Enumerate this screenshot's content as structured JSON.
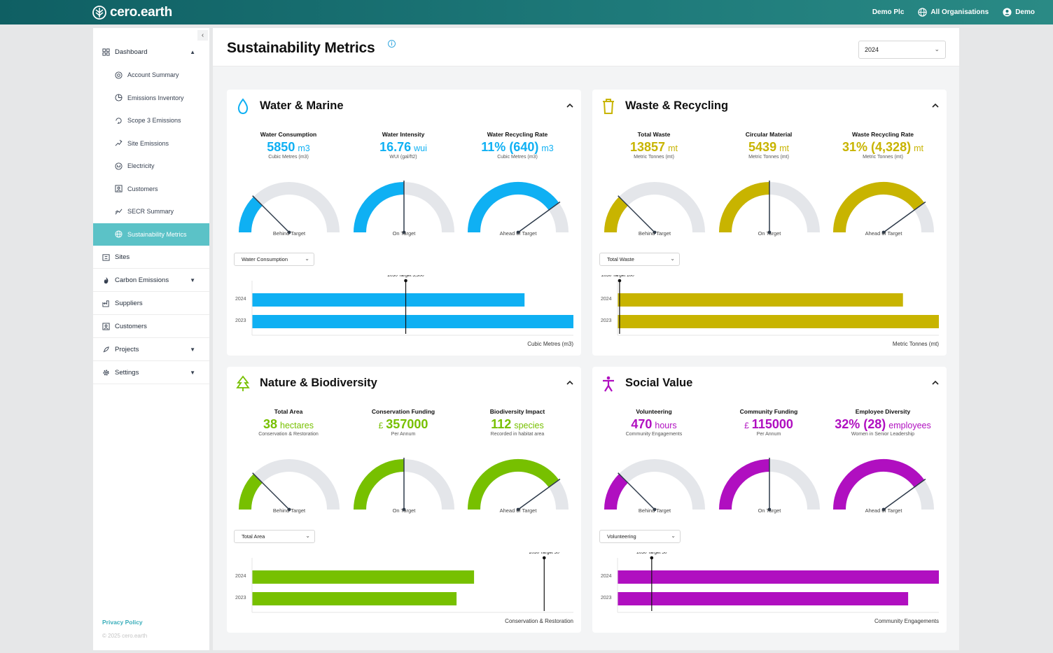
{
  "app": {
    "brand": "cero.earth",
    "org": "Demo Plc",
    "all_orgs": "All Organisations",
    "user": "Demo"
  },
  "sidebar": {
    "items": [
      {
        "label": "Dashboard",
        "icon": "dashboard-icon",
        "caret": "up"
      },
      {
        "label": "Account Summary",
        "icon": "dial-icon"
      },
      {
        "label": "Emissions Inventory",
        "icon": "pie-icon"
      },
      {
        "label": "Scope 3 Emissions",
        "icon": "cycle-icon"
      },
      {
        "label": "Site Emissions",
        "icon": "sparkle-icon"
      },
      {
        "label": "Electricity",
        "icon": "plug-icon"
      },
      {
        "label": "Customers",
        "icon": "person-card-icon"
      },
      {
        "label": "SECR Summary",
        "icon": "trend-icon"
      },
      {
        "label": "Sustainability Metrics",
        "icon": "globe-icon",
        "active": true
      },
      {
        "label": "Sites",
        "icon": "building-icon"
      },
      {
        "label": "Carbon Emissions",
        "icon": "flame-icon",
        "caret": "down"
      },
      {
        "label": "Suppliers",
        "icon": "factory-icon"
      },
      {
        "label": "Customers",
        "icon": "person-card-icon"
      },
      {
        "label": "Projects",
        "icon": "rocket-icon",
        "caret": "down"
      },
      {
        "label": "Settings",
        "icon": "gear-icon",
        "caret": "down"
      }
    ],
    "privacy": "Privacy Policy",
    "copyright": "© 2025 cero.earth"
  },
  "page": {
    "title": "Sustainability Metrics",
    "year": "2024"
  },
  "cards": [
    {
      "title": "Water & Marine",
      "icon": "water-drop-icon",
      "color": "#0fb0f3",
      "metrics": [
        {
          "label": "Water Consumption",
          "value": "5850",
          "unit": "m3",
          "sub": "Cubic Metres (m3)"
        },
        {
          "label": "Water Intensity",
          "value": "16.76",
          "unit": "wui",
          "sub": "WUI (gal/ft2)"
        },
        {
          "label": "Water Recycling Rate",
          "value": "11% (640)",
          "unit": "m3",
          "sub": "Cubic Metres (m3)"
        }
      ],
      "gauges": [
        {
          "label": "Behind Target",
          "fraction": 0.25
        },
        {
          "label": "On Target",
          "fraction": 0.5
        },
        {
          "label": "Ahead of Target",
          "fraction": 0.8
        }
      ],
      "select": "Water Consumption",
      "bar_chart": {
        "target_label": "2030 Target 3,300",
        "target": 3300,
        "max": 6900,
        "axis_label": "Cubic Metres (m3)",
        "rows": [
          {
            "year": "2024",
            "value": 5850
          },
          {
            "year": "2023",
            "value": 6900
          }
        ]
      }
    },
    {
      "title": "Waste & Recycling",
      "icon": "bin-icon",
      "color": "#c8b400",
      "metrics": [
        {
          "label": "Total Waste",
          "value": "13857",
          "unit": "mt",
          "sub": "Metric Tonnes (mt)"
        },
        {
          "label": "Circular Material",
          "value": "5439",
          "unit": "mt",
          "sub": "Metric Tonnes (mt)"
        },
        {
          "label": "Waste Recycling Rate",
          "value": "31% (4,328)",
          "unit": "mt",
          "sub": "Metric Tonnes (mt)"
        }
      ],
      "gauges": [
        {
          "label": "Behind Target",
          "fraction": 0.25
        },
        {
          "label": "On Target",
          "fraction": 0.5
        },
        {
          "label": "Ahead of Target",
          "fraction": 0.8
        }
      ],
      "select": "Total Waste",
      "bar_chart": {
        "target_label": "2030 Target 100",
        "target": 100,
        "max": 15600,
        "axis_label": "Metric Tonnes (mt)",
        "rows": [
          {
            "year": "2024",
            "value": 13857
          },
          {
            "year": "2023",
            "value": 15600
          }
        ]
      }
    },
    {
      "title": "Nature & Biodiversity",
      "icon": "tree-icon",
      "color": "#77c000",
      "metrics": [
        {
          "label": "Total Area",
          "value": "38",
          "unit": "hectares",
          "sub": "Conservation & Restoration"
        },
        {
          "label": "Conservation Funding",
          "currency": "£",
          "value": "357000",
          "unit": "",
          "sub": "Per Annum"
        },
        {
          "label": "Biodiversity Impact",
          "value": "112",
          "unit": "species",
          "sub": "Recorded in habitat area"
        }
      ],
      "gauges": [
        {
          "label": "Behind Target",
          "fraction": 0.25
        },
        {
          "label": "On Target",
          "fraction": 0.5
        },
        {
          "label": "Ahead of Target",
          "fraction": 0.8
        }
      ],
      "select": "Total Area",
      "bar_chart": {
        "target_label": "2030 Target 50",
        "target": 50,
        "max": 55,
        "axis_label": "Conservation & Restoration",
        "rows": [
          {
            "year": "2024",
            "value": 38
          },
          {
            "year": "2023",
            "value": 35
          }
        ]
      }
    },
    {
      "title": "Social Value",
      "icon": "person-icon",
      "color": "#b00fc0",
      "metrics": [
        {
          "label": "Volunteering",
          "value": "470",
          "unit": "hours",
          "sub": "Community Engagements"
        },
        {
          "label": "Community Funding",
          "currency": "£",
          "value": "115000",
          "unit": "",
          "sub": "Per Annum"
        },
        {
          "label": "Employee Diversity",
          "value": "32% (28)",
          "unit": "employees",
          "sub": "Women in Senior Leadership"
        }
      ],
      "gauges": [
        {
          "label": "Behind Target",
          "fraction": 0.25
        },
        {
          "label": "On Target",
          "fraction": 0.5
        },
        {
          "label": "Ahead of Target",
          "fraction": 0.8
        }
      ],
      "select": "Volunteering",
      "bar_chart": {
        "target_label": "2030 Target 50",
        "target": 50,
        "max": 470,
        "axis_label": "Community Engagements",
        "rows": [
          {
            "year": "2024",
            "value": 470
          },
          {
            "year": "2023",
            "value": 425
          }
        ]
      }
    }
  ],
  "colors": {
    "gauge_track": "#e4e6ea",
    "needle": "#2d3a4a",
    "teal": "#1e7a7a",
    "active": "#5bc2c7"
  }
}
